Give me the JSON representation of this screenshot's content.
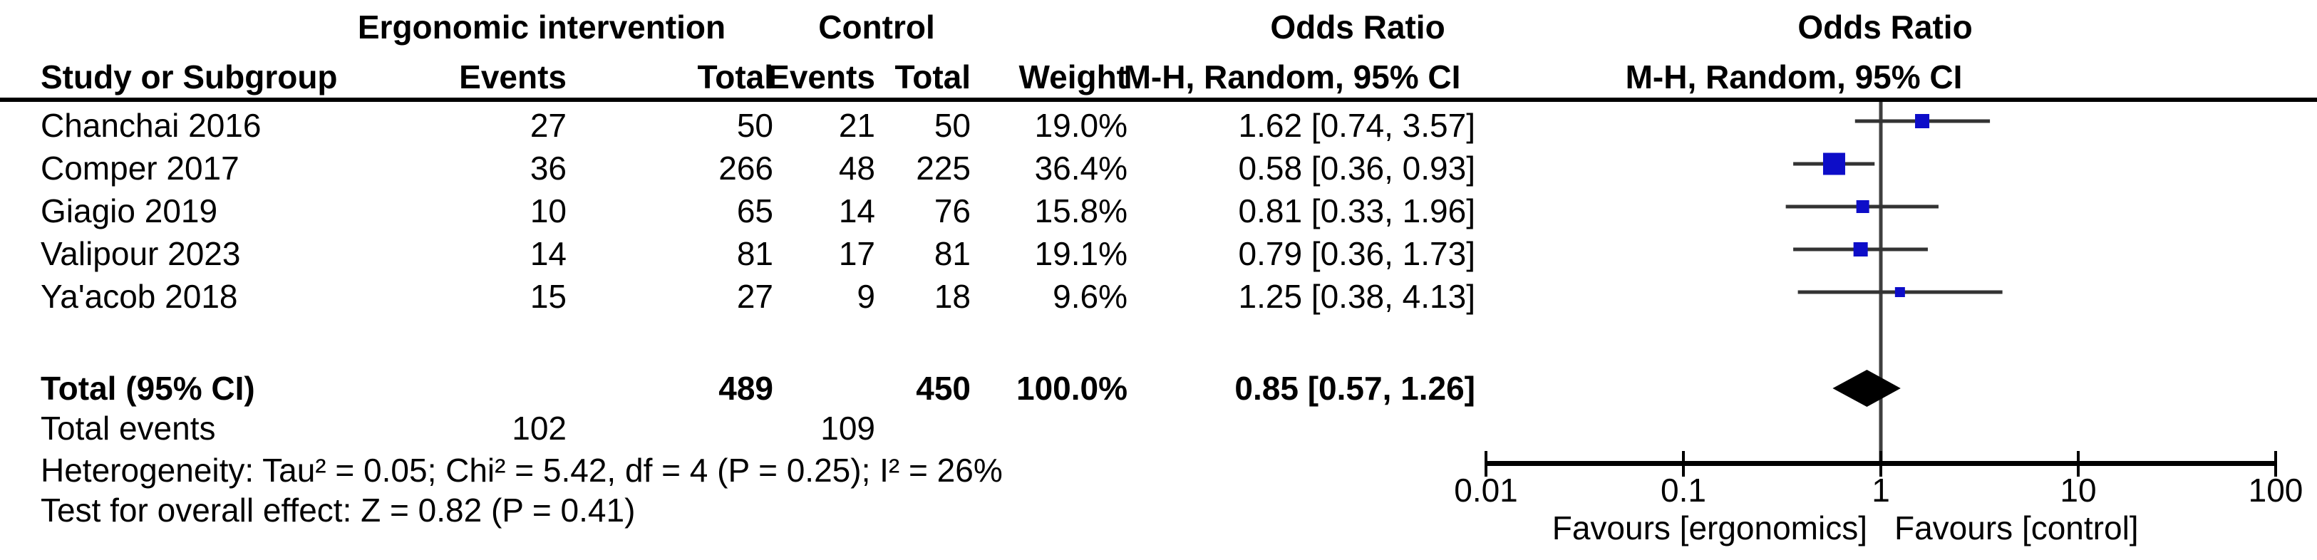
{
  "colors": {
    "square": "#0d0dc8",
    "diamond": "#000000",
    "ci_line": "#333333",
    "zero_line": "#3f3f3f",
    "axis": "#000000",
    "text": "#000000"
  },
  "table": {
    "group_headers": {
      "intervention": "Ergonomic intervention",
      "control": "Control",
      "odds_ratio_left": "Odds Ratio",
      "odds_ratio_right": "Odds Ratio"
    },
    "col_headers": {
      "study": "Study or Subgroup",
      "events1": "Events",
      "total1": "Total",
      "events2": "Events",
      "total2": "Total",
      "weight": "Weight",
      "mh_left": "M-H, Random, 95% CI",
      "mh_right": "M-H, Random, 95% CI"
    },
    "rows": [
      {
        "study": "Chanchai 2016",
        "e1": "27",
        "t1": "50",
        "e2": "21",
        "t2": "50",
        "weight": "19.0%",
        "or_text": "1.62 [0.74, 3.57]"
      },
      {
        "study": "Comper 2017",
        "e1": "36",
        "t1": "266",
        "e2": "48",
        "t2": "225",
        "weight": "36.4%",
        "or_text": "0.58 [0.36, 0.93]"
      },
      {
        "study": "Giagio 2019",
        "e1": "10",
        "t1": "65",
        "e2": "14",
        "t2": "76",
        "weight": "15.8%",
        "or_text": "0.81 [0.33, 1.96]"
      },
      {
        "study": "Valipour 2023",
        "e1": "14",
        "t1": "81",
        "e2": "17",
        "t2": "81",
        "weight": "19.1%",
        "or_text": "0.79 [0.36, 1.73]"
      },
      {
        "study": "Ya'acob 2018",
        "e1": "15",
        "t1": "27",
        "e2": "9",
        "t2": "18",
        "weight": "9.6%",
        "or_text": "1.25 [0.38, 4.13]"
      }
    ],
    "total": {
      "label": "Total (95% CI)",
      "t1": "489",
      "t2": "450",
      "weight": "100.0%",
      "or_text": "0.85 [0.57, 1.26]"
    },
    "total_events": {
      "label": "Total events",
      "e1": "102",
      "e2": "109"
    },
    "heterogeneity": "Heterogeneity: Tau² = 0.05; Chi² = 5.42, df = 4 (P = 0.25); I² = 26%",
    "overall_effect": "Test for overall effect: Z = 0.82 (P = 0.41)"
  },
  "axis": {
    "tick_labels": [
      "0.01",
      "0.1",
      "1",
      "10",
      "100"
    ],
    "tick_values": [
      0.01,
      0.1,
      1,
      10,
      100
    ],
    "favours_left": "Favours [ergonomics]",
    "favours_right": "Favours [control]"
  },
  "chart_data": {
    "type": "forest",
    "measure": "Odds Ratio",
    "method": "M-H, Random, 95% CI",
    "x_scale": "log",
    "x_range": [
      0.01,
      100
    ],
    "x_ticks": [
      0.01,
      0.1,
      1,
      10,
      100
    ],
    "studies": [
      {
        "name": "Chanchai 2016",
        "events_intervention": 27,
        "total_intervention": 50,
        "events_control": 21,
        "total_control": 50,
        "weight_pct": 19.0,
        "or": 1.62,
        "ci_low": 0.74,
        "ci_high": 3.57
      },
      {
        "name": "Comper 2017",
        "events_intervention": 36,
        "total_intervention": 266,
        "events_control": 48,
        "total_control": 225,
        "weight_pct": 36.4,
        "or": 0.58,
        "ci_low": 0.36,
        "ci_high": 0.93
      },
      {
        "name": "Giagio 2019",
        "events_intervention": 10,
        "total_intervention": 65,
        "events_control": 14,
        "total_control": 76,
        "weight_pct": 15.8,
        "or": 0.81,
        "ci_low": 0.33,
        "ci_high": 1.96
      },
      {
        "name": "Valipour 2023",
        "events_intervention": 14,
        "total_intervention": 81,
        "events_control": 17,
        "total_control": 81,
        "weight_pct": 19.1,
        "or": 0.79,
        "ci_low": 0.36,
        "ci_high": 1.73
      },
      {
        "name": "Ya'acob 2018",
        "events_intervention": 15,
        "total_intervention": 27,
        "events_control": 9,
        "total_control": 18,
        "weight_pct": 9.6,
        "or": 1.25,
        "ci_low": 0.38,
        "ci_high": 4.13
      }
    ],
    "total": {
      "total_intervention": 489,
      "total_control": 450,
      "weight_pct": 100.0,
      "or": 0.85,
      "ci_low": 0.57,
      "ci_high": 1.26,
      "events_intervention": 102,
      "events_control": 109
    },
    "heterogeneity": {
      "tau2": 0.05,
      "chi2": 5.42,
      "df": 4,
      "p": 0.25,
      "i2_pct": 26
    },
    "overall_effect": {
      "z": 0.82,
      "p": 0.41
    },
    "favours_left": "Favours [ergonomics]",
    "favours_right": "Favours [control]"
  }
}
